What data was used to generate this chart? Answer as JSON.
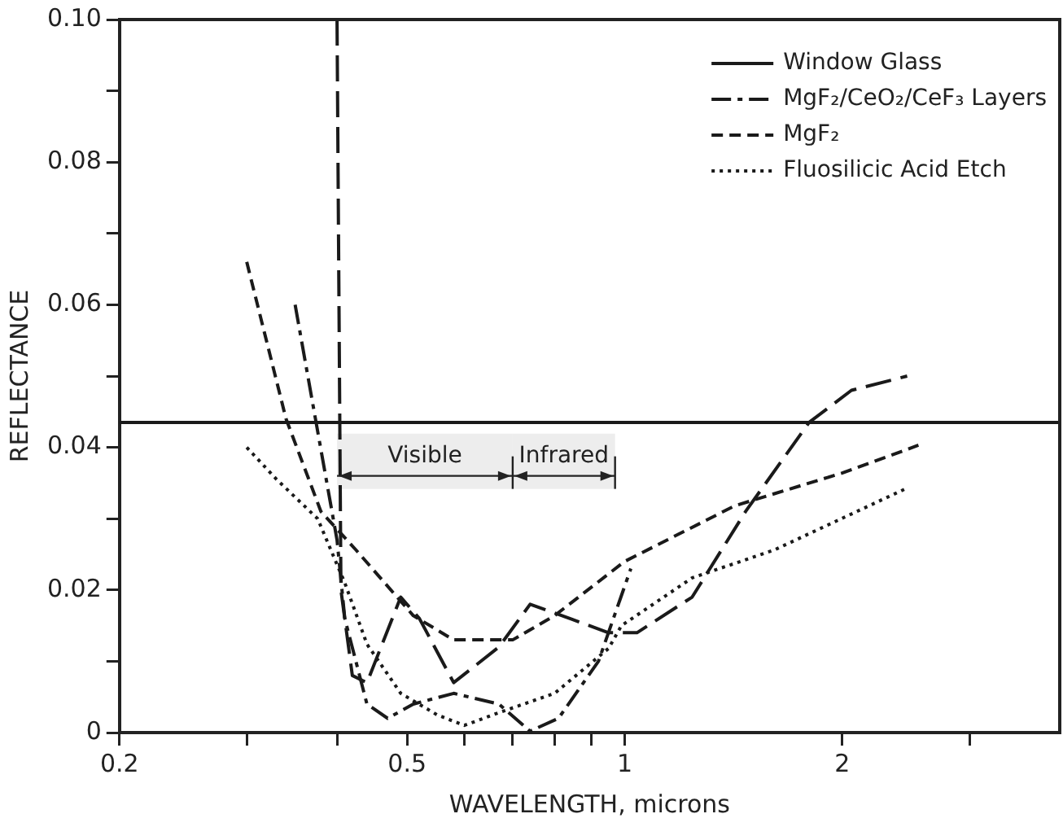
{
  "chart_data": {
    "type": "line",
    "xlabel": "WAVELENGTH, microns",
    "ylabel": "REFLECTANCE",
    "log": "x",
    "grid": false,
    "legend": "top right",
    "xlim": [
      0.2,
      4
    ],
    "ylim": [
      0,
      0.1
    ],
    "xticks": [
      0.2,
      {
        "value": 0.3,
        "label": null
      },
      {
        "value": 0.4,
        "label": null
      },
      0.5,
      {
        "value": 0.6,
        "label": null
      },
      {
        "value": 0.7,
        "label": null
      },
      {
        "value": 0.8,
        "label": null
      },
      {
        "value": 0.9,
        "label": null
      },
      1,
      2,
      {
        "value": 3,
        "label": null
      }
    ],
    "yticks": [
      0,
      {
        "value": 0.01,
        "label": null
      },
      0.02,
      {
        "value": 0.03,
        "label": null
      },
      0.04,
      {
        "value": 0.05,
        "label": null
      },
      0.06,
      {
        "value": 0.07,
        "label": null
      },
      0.08,
      {
        "value": 0.09,
        "label": null
      },
      {
        "value": 0.1,
        "label": "0.10"
      }
    ],
    "series": [
      {
        "name": "Window Glass",
        "color": "#1a1a1a",
        "line_style": "solid",
        "x": [
          0.2,
          4
        ],
        "values": [
          0.0435,
          0.0435
        ]
      },
      {
        "color": "#1a1a1a",
        "line_style": "longdash",
        "x": [
          0.4,
          0.405,
          0.42,
          0.44,
          0.49,
          0.52,
          0.58,
          0.67,
          0.74,
          0.84,
          0.95,
          1.04,
          1.24,
          1.47,
          1.8,
          2.06,
          2.46
        ],
        "values": [
          0.1,
          0.02,
          0.008,
          0.007,
          0.019,
          0.016,
          0.007,
          0.012,
          0.018,
          0.016,
          0.014,
          0.014,
          0.019,
          0.031,
          0.0435,
          0.048,
          0.05
        ]
      },
      {
        "name": "MgF₂/CeO₂/CeF₃ Layers",
        "color": "#1a1a1a",
        "line_style": "dashdot",
        "x": [
          0.35,
          0.4,
          0.41,
          0.44,
          0.47,
          0.51,
          0.58,
          0.67,
          0.74,
          0.81,
          0.92,
          1.02
        ],
        "values": [
          0.06,
          0.027,
          0.016,
          0.004,
          0.002,
          0.004,
          0.0055,
          0.004,
          0.0002,
          0.002,
          0.01,
          0.023
        ]
      },
      {
        "name": "MgF₂",
        "color": "#1a1a1a",
        "line_style": "dashed",
        "x": [
          0.3,
          0.34,
          0.38,
          0.425,
          0.51,
          0.58,
          0.7,
          0.8,
          1,
          1.42,
          2,
          2.55
        ],
        "values": [
          0.066,
          0.044,
          0.031,
          0.0256,
          0.0164,
          0.013,
          0.013,
          0.0164,
          0.024,
          0.0318,
          0.0364,
          0.0403
        ]
      },
      {
        "name": "Fluosilicic Acid Etch",
        "color": "#1a1a1a",
        "line_style": "dotted",
        "x": [
          0.3,
          0.33,
          0.376,
          0.41,
          0.44,
          0.49,
          0.55,
          0.6,
          0.67,
          0.8,
          0.95,
          0.99,
          1.24,
          1.61,
          2.46
        ],
        "values": [
          0.04,
          0.0355,
          0.03,
          0.021,
          0.0124,
          0.0055,
          0.0025,
          0.001,
          0.0028,
          0.0055,
          0.0118,
          0.015,
          0.0217,
          0.0256,
          0.0343
        ]
      }
    ],
    "bands": [
      {
        "axis": "x",
        "from": 0.4,
        "to": 0.7,
        "label": "Visible"
      },
      {
        "axis": "x",
        "from": 0.7,
        "to": 0.97,
        "label": "Infrared"
      }
    ]
  }
}
